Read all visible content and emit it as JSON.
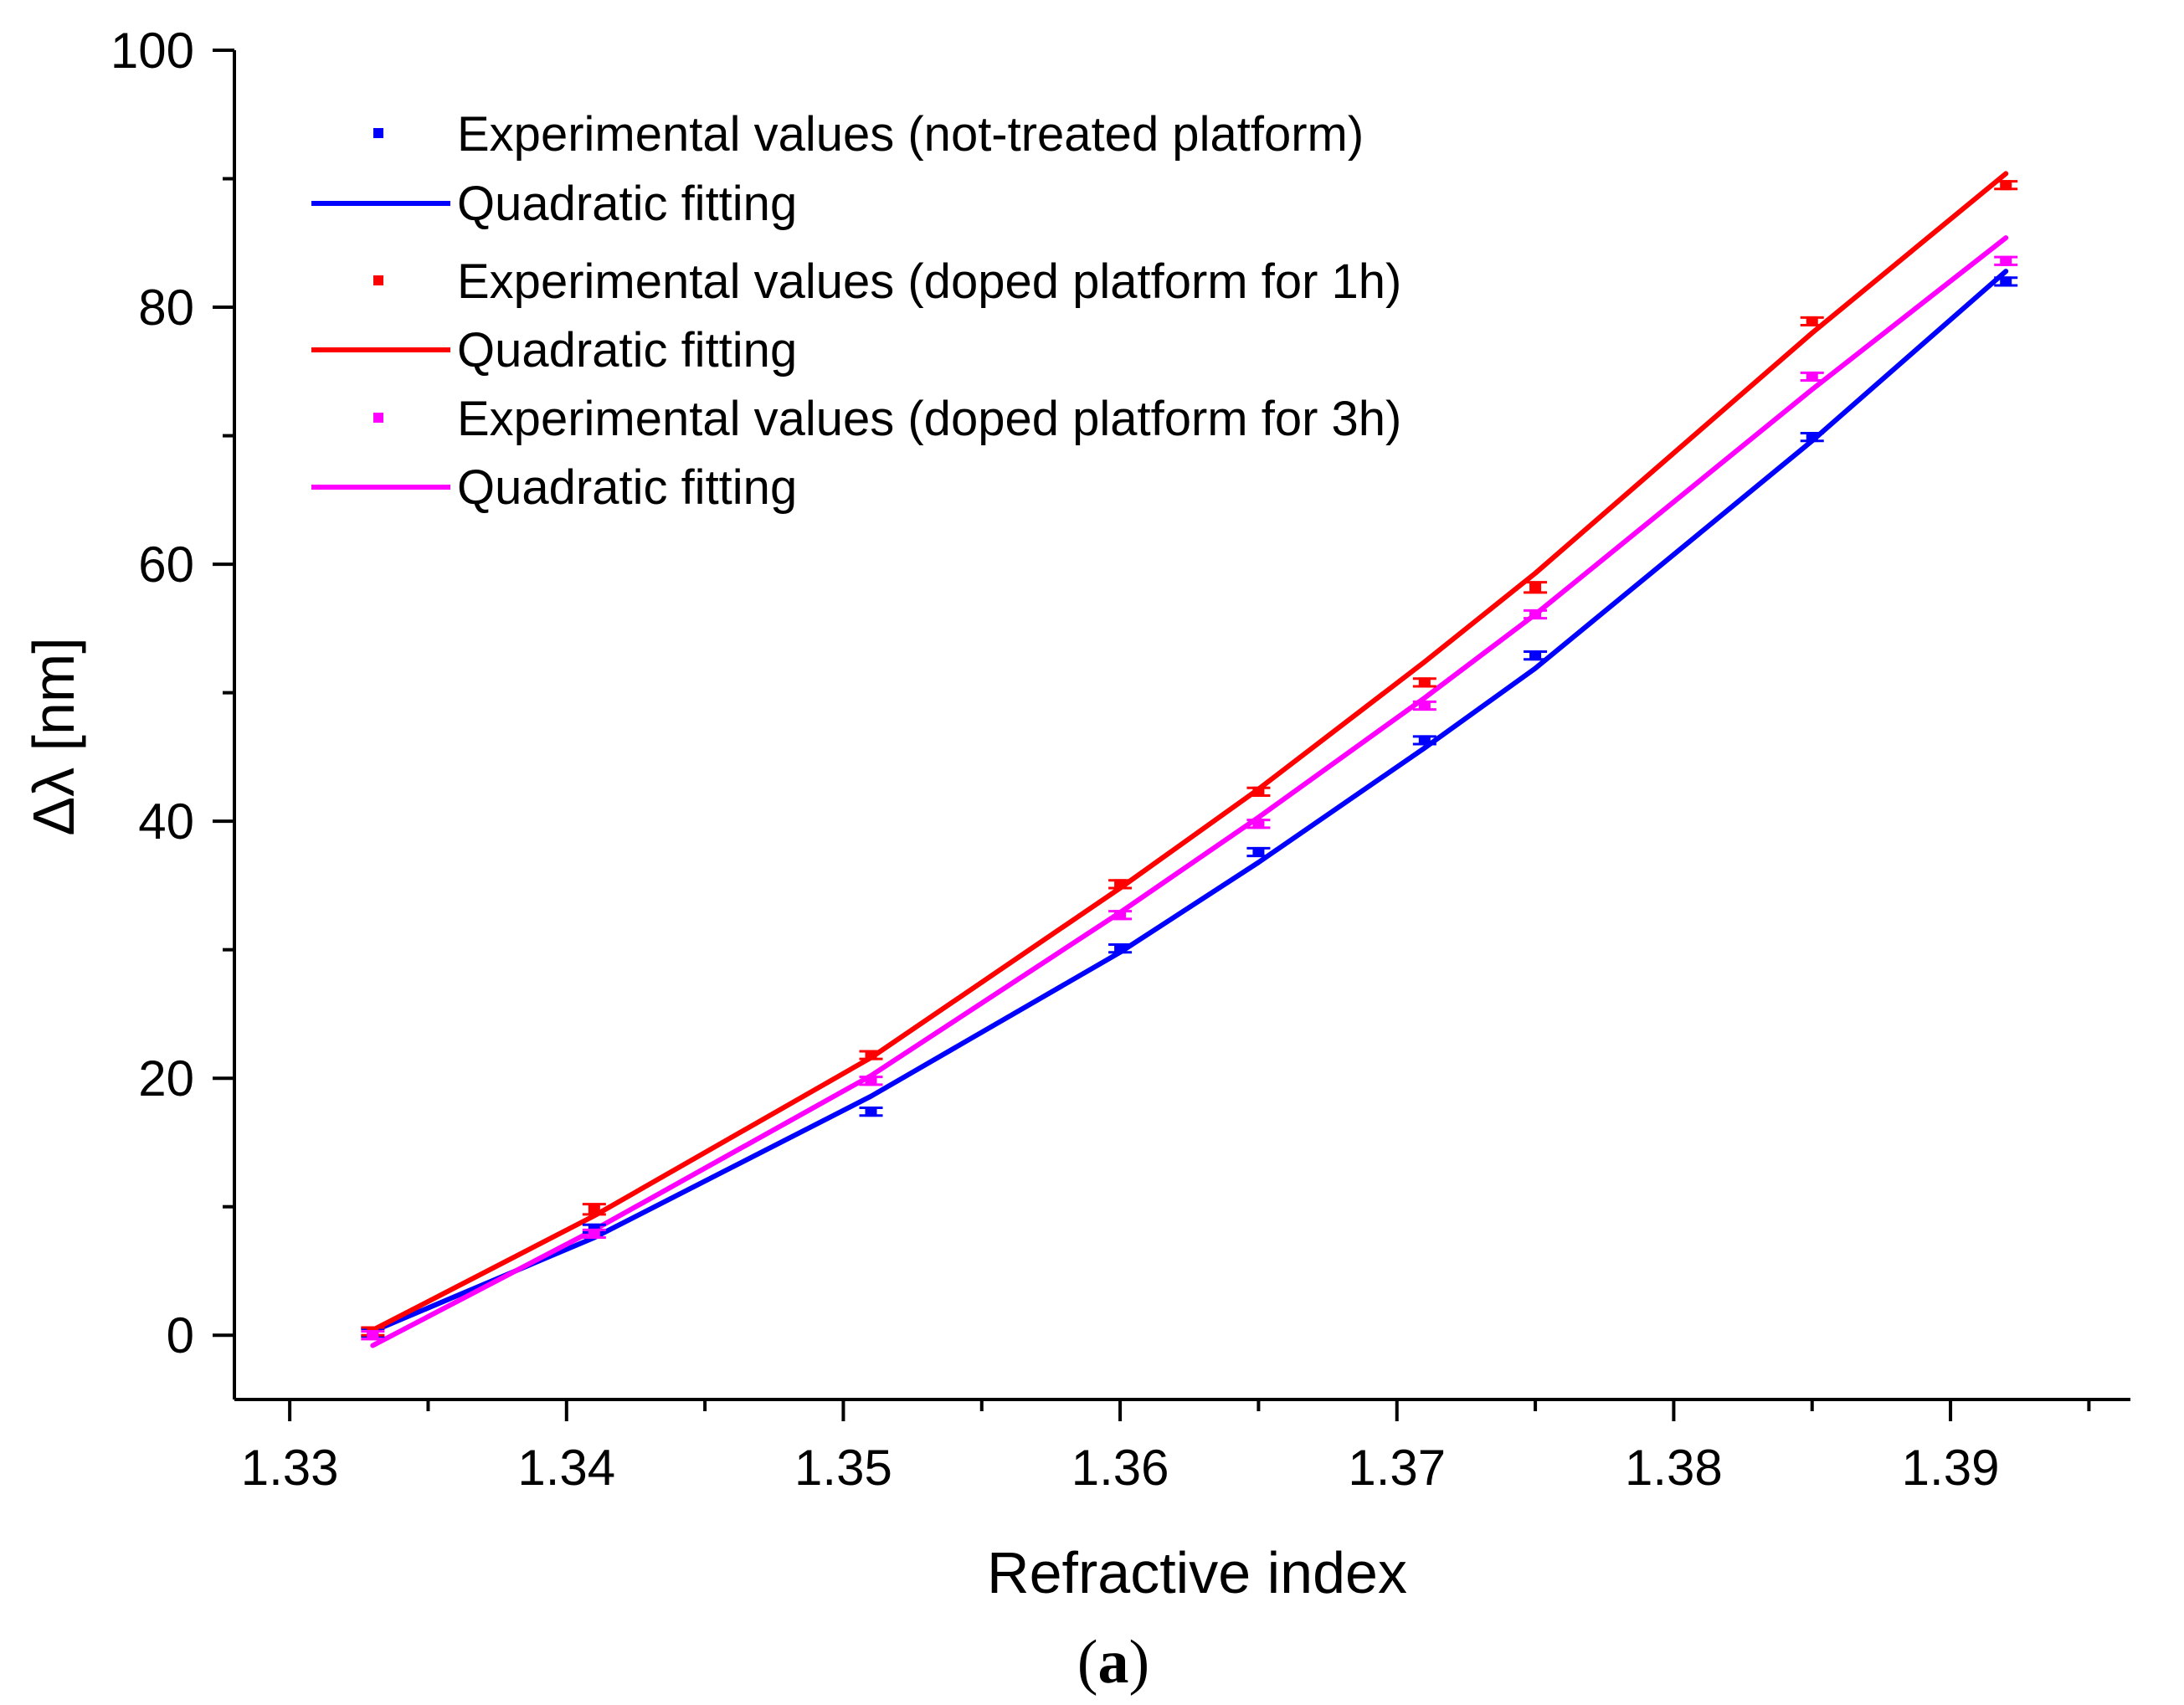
{
  "chart_data": {
    "type": "scatter",
    "title": "",
    "xlabel": "Refractive index",
    "ylabel": "Δλ [nm]",
    "caption": "(a)",
    "caption_letter": "a",
    "xlim": [
      1.328,
      1.3965
    ],
    "ylim": [
      -5,
      100
    ],
    "xticks": [
      1.33,
      1.34,
      1.35,
      1.36,
      1.37,
      1.38,
      1.39
    ],
    "xtick_labels": [
      "1.33",
      "1.34",
      "1.35",
      "1.36",
      "1.37",
      "1.38",
      "1.39"
    ],
    "xminor_step": 0.005,
    "yticks": [
      0,
      20,
      40,
      60,
      80,
      100
    ],
    "ytick_labels": [
      "0",
      "20",
      "40",
      "60",
      "80",
      "100"
    ],
    "yminor_step": 10,
    "grid": false,
    "legend_position": "top-left",
    "series": [
      {
        "name": "Experimental values (not-treated platform)",
        "kind": "points",
        "color": "#0000ff",
        "x": [
          1.333,
          1.341,
          1.351,
          1.36,
          1.365,
          1.371,
          1.375,
          1.385,
          1.392
        ],
        "y": [
          0.2,
          8.3,
          17.4,
          30.1,
          37.6,
          46.3,
          52.9,
          69.9,
          82.0
        ],
        "err": [
          0.3,
          0.3,
          0.3,
          0.3,
          0.3,
          0.3,
          0.3,
          0.3,
          0.3
        ]
      },
      {
        "name": "Quadratic fitting",
        "kind": "line",
        "color": "#0000ff",
        "x": [
          1.333,
          1.341,
          1.351,
          1.36,
          1.365,
          1.371,
          1.375,
          1.385,
          1.392
        ],
        "y": [
          0.3,
          7.6,
          18.6,
          29.8,
          36.8,
          45.7,
          51.9,
          69.6,
          82.8
        ]
      },
      {
        "name": "Experimental values (doped platform for 1h)",
        "kind": "points",
        "color": "#ff0000",
        "x": [
          1.333,
          1.341,
          1.351,
          1.36,
          1.365,
          1.371,
          1.375,
          1.385,
          1.392
        ],
        "y": [
          0.3,
          9.8,
          21.8,
          35.1,
          42.3,
          50.8,
          58.2,
          78.9,
          89.5
        ],
        "err": [
          0.3,
          0.4,
          0.3,
          0.3,
          0.3,
          0.3,
          0.4,
          0.3,
          0.3
        ]
      },
      {
        "name": "Quadratic fitting",
        "kind": "line",
        "color": "#ff0000",
        "x": [
          1.333,
          1.341,
          1.351,
          1.36,
          1.365,
          1.371,
          1.375,
          1.385,
          1.392
        ],
        "y": [
          0.4,
          9.3,
          21.6,
          34.8,
          42.5,
          52.4,
          59.3,
          78.0,
          90.4
        ]
      },
      {
        "name": "Experimental values (doped platform for 3h)",
        "kind": "points",
        "color": "#ff00ff",
        "x": [
          1.333,
          1.341,
          1.351,
          1.36,
          1.365,
          1.371,
          1.375,
          1.385,
          1.392
        ],
        "y": [
          0.0,
          7.9,
          19.8,
          32.7,
          39.8,
          49.0,
          56.1,
          74.6,
          83.6
        ],
        "err": [
          0.3,
          0.3,
          0.3,
          0.3,
          0.3,
          0.3,
          0.3,
          0.3,
          0.3
        ]
      },
      {
        "name": "Quadratic fitting",
        "kind": "line",
        "color": "#ff00ff",
        "x": [
          1.333,
          1.341,
          1.351,
          1.36,
          1.365,
          1.371,
          1.375,
          1.385,
          1.392
        ],
        "y": [
          -0.8,
          8.2,
          20.2,
          32.9,
          40.3,
          49.6,
          56.1,
          73.6,
          85.4
        ]
      }
    ]
  }
}
